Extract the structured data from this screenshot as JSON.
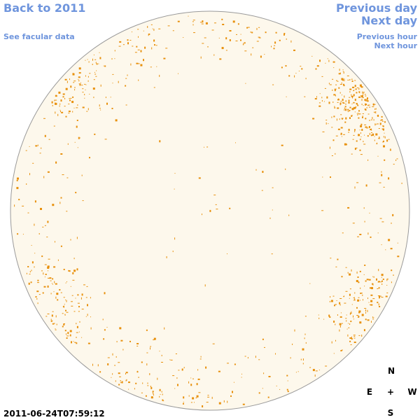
{
  "navigation": {
    "back": "Back to 2011",
    "facular_data": "See facular data",
    "previous_day": "Previous day",
    "next_day": "Next day",
    "previous_hour": "Previous hour",
    "next_hour": "Next hour"
  },
  "timestamp": "2011-06-24T07:59:12",
  "compass": {
    "north": "N",
    "east": "E",
    "center": "+",
    "west": "W",
    "south": "S"
  }
}
